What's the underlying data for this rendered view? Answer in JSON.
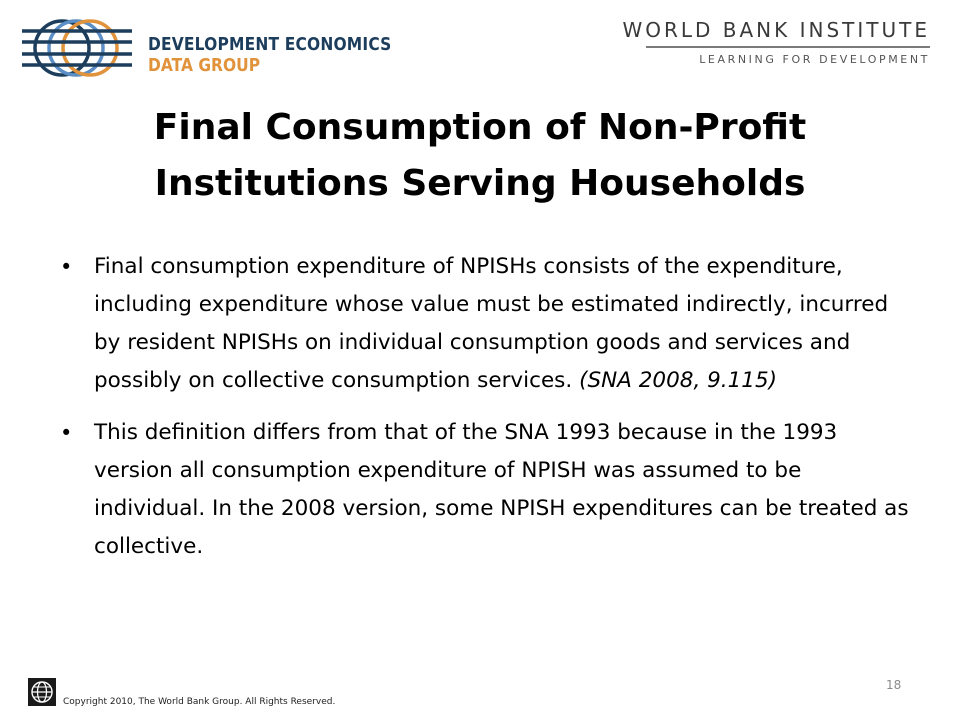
{
  "header": {
    "left_logo": {
      "line1": "DEVELOPMENT ECONOMICS",
      "line2": "DATA GROUP"
    },
    "right_logo": {
      "name": "WORLD BANK INSTITUTE",
      "tagline": "LEARNING FOR DEVELOPMENT"
    }
  },
  "slide": {
    "title_line1": "Final Consumption of Non-Profit",
    "title_line2": "Institutions Serving Households",
    "bullets": [
      {
        "text": "Final consumption expenditure of NPISHs consists of the expenditure, including expenditure whose value must be estimated indirectly, incurred by resident NPISHs on individual consumption goods and services and possibly on collective consumption services. ",
        "citation": "(SNA 2008, 9.115)"
      },
      {
        "text": "This definition differs from that of the SNA 1993 because in the 1993 version all consumption expenditure of NPISH was assumed to be individual. In the 2008 version, some NPISH expenditures can be treated as collective.",
        "citation": ""
      }
    ]
  },
  "footer": {
    "copyright": "Copyright 2010, The World Bank Group. All Rights Reserved.",
    "page_number": "18"
  },
  "colors": {
    "deg_navy": "#1d3d5c",
    "deg_orange": "#e1933c",
    "globe_blue": "#5b8ec4"
  }
}
